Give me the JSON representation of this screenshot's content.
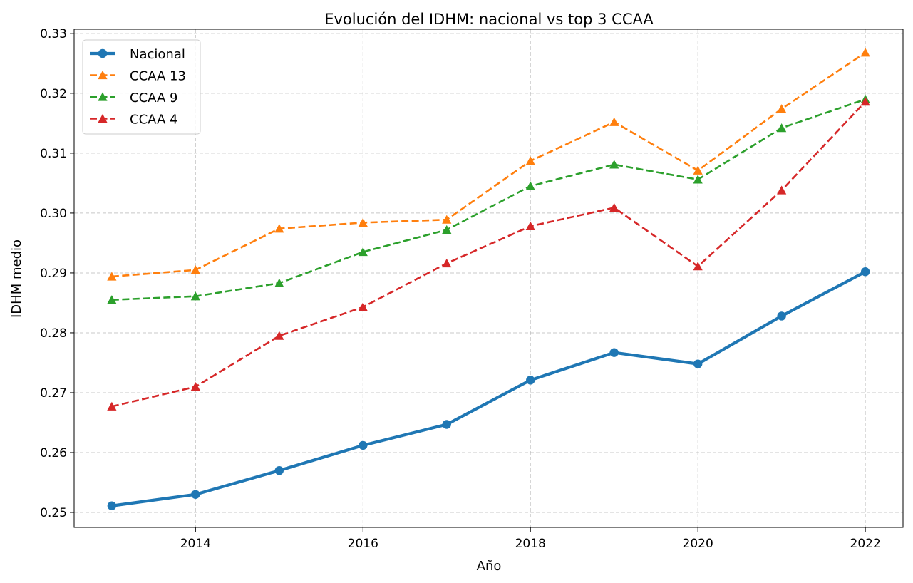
{
  "chart_data": {
    "type": "line",
    "title": "Evolución del IDHM: nacional vs top 3 CCAA",
    "xlabel": "Año",
    "ylabel": "IDHM medio",
    "xlim": [
      2012.55,
      2022.45
    ],
    "ylim": [
      0.2475,
      0.3307
    ],
    "xticks": [
      2014,
      2016,
      2018,
      2020,
      2022
    ],
    "yticks": [
      0.25,
      0.26,
      0.27,
      0.28,
      0.29,
      0.3,
      0.31,
      0.32,
      0.33
    ],
    "ytick_labels": [
      "0.25",
      "0.26",
      "0.27",
      "0.28",
      "0.29",
      "0.30",
      "0.31",
      "0.32",
      "0.33"
    ],
    "grid": true,
    "legend_position": "top-left",
    "x": [
      2013,
      2014,
      2015,
      2016,
      2017,
      2018,
      2019,
      2020,
      2021,
      2022
    ],
    "series": [
      {
        "name": "Nacional",
        "color": "#1f77b4",
        "linestyle": "solid",
        "marker": "circle",
        "values": [
          0.2511,
          0.253,
          0.257,
          0.2612,
          0.2647,
          0.2721,
          0.2767,
          0.2748,
          0.2828,
          0.2902
        ]
      },
      {
        "name": "CCAA 13",
        "color": "#ff7f0e",
        "linestyle": "dashed",
        "marker": "triangle",
        "values": [
          0.2894,
          0.2905,
          0.2974,
          0.2984,
          0.2989,
          0.3087,
          0.3152,
          0.3071,
          0.3174,
          0.3268
        ]
      },
      {
        "name": "CCAA 9",
        "color": "#2ca02c",
        "linestyle": "dashed",
        "marker": "triangle",
        "values": [
          0.2855,
          0.2861,
          0.2883,
          0.2935,
          0.2972,
          0.3045,
          0.3081,
          0.3056,
          0.3142,
          0.319
        ]
      },
      {
        "name": "CCAA 4",
        "color": "#d62728",
        "linestyle": "dashed",
        "marker": "triangle",
        "values": [
          0.2677,
          0.271,
          0.2795,
          0.2843,
          0.2916,
          0.2978,
          0.3009,
          0.2911,
          0.3038,
          0.3186
        ]
      }
    ]
  }
}
